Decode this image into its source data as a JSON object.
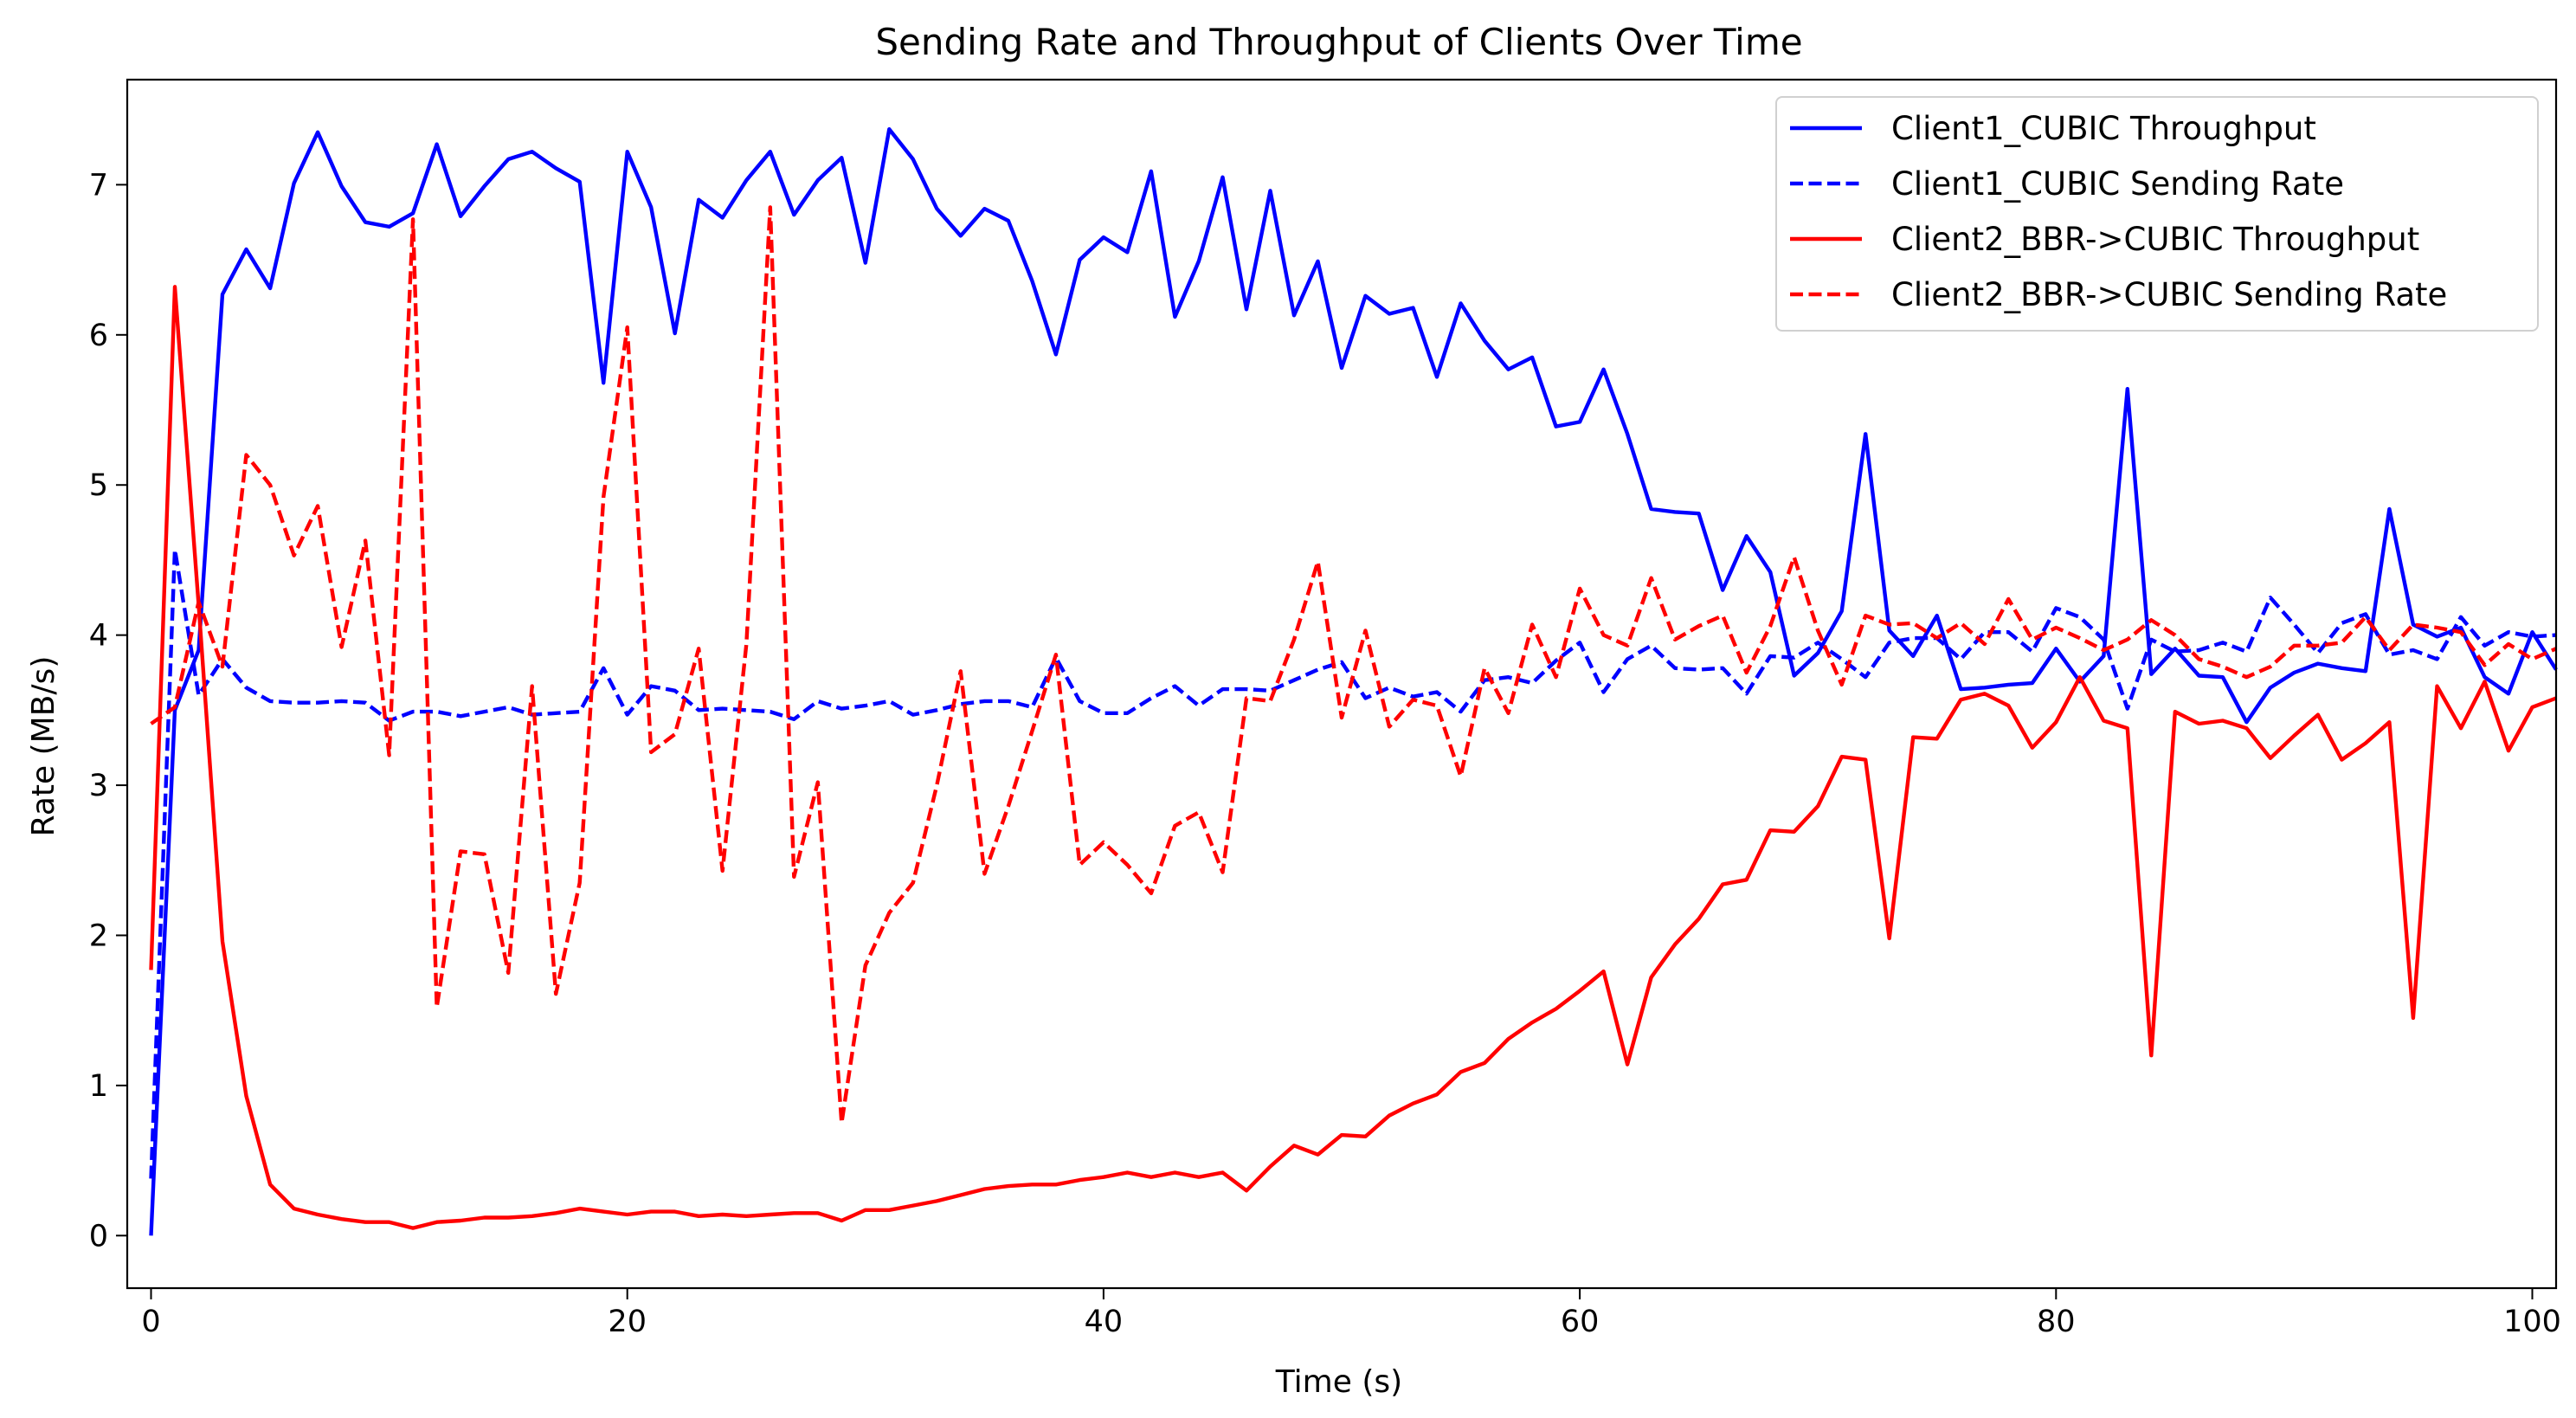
{
  "chart_data": {
    "type": "line",
    "title": "Sending Rate and Throughput of Clients Over Time",
    "xlabel": "Time (s)",
    "ylabel": "Rate (MB/s)",
    "xlim": [
      -1,
      101
    ],
    "ylim": [
      -0.35,
      7.7
    ],
    "xticks": [
      0,
      20,
      40,
      60,
      80,
      100
    ],
    "yticks": [
      0,
      1,
      2,
      3,
      4,
      5,
      6,
      7
    ],
    "xtick_labels": [
      "0",
      "20",
      "40",
      "60",
      "80",
      "100"
    ],
    "ytick_labels": [
      "0",
      "1",
      "2",
      "3",
      "4",
      "5",
      "6",
      "7"
    ],
    "grid": false,
    "legend_position": "top-right",
    "x": [
      0,
      1,
      2,
      3,
      4,
      5,
      6,
      7,
      8,
      9,
      10,
      11,
      12,
      13,
      14,
      15,
      16,
      17,
      18,
      19,
      20,
      21,
      22,
      23,
      24,
      25,
      26,
      27,
      28,
      29,
      30,
      31,
      32,
      33,
      34,
      35,
      36,
      37,
      38,
      39,
      40,
      41,
      42,
      43,
      44,
      45,
      46,
      47,
      48,
      49,
      50,
      51,
      52,
      53,
      54,
      55,
      56,
      57,
      58,
      59,
      60,
      61,
      62,
      63,
      64,
      65,
      66,
      67,
      68,
      69,
      70,
      71,
      72,
      73,
      74,
      75,
      76,
      77,
      78,
      79,
      80,
      81,
      82,
      83,
      84,
      85,
      86,
      87,
      88,
      89,
      90,
      91,
      92,
      93,
      94,
      95,
      96,
      97,
      98,
      99,
      100,
      101
    ],
    "series": [
      {
        "name": "Client1_CUBIC Throughput",
        "color": "#0000ff",
        "style": "solid",
        "values": [
          0.0,
          3.5,
          3.9,
          6.27,
          6.57,
          6.31,
          7.01,
          7.35,
          6.99,
          6.75,
          6.72,
          6.81,
          7.27,
          6.79,
          6.99,
          7.17,
          7.22,
          7.11,
          7.02,
          5.68,
          7.22,
          6.85,
          6.01,
          6.9,
          6.78,
          7.03,
          7.22,
          6.8,
          7.03,
          7.18,
          6.48,
          7.37,
          7.17,
          6.84,
          6.66,
          6.84,
          6.76,
          6.36,
          5.87,
          6.5,
          6.65,
          6.55,
          7.09,
          6.12,
          6.49,
          7.05,
          6.17,
          6.96,
          6.13,
          6.49,
          5.78,
          6.26,
          6.14,
          6.18,
          5.72,
          6.21,
          5.96,
          5.77,
          5.85,
          5.39,
          5.42,
          5.77,
          5.34,
          4.84,
          4.82,
          4.81,
          4.3,
          4.66,
          4.42,
          3.73,
          3.88,
          4.16,
          5.34,
          4.03,
          3.86,
          4.13,
          3.64,
          3.65,
          3.67,
          3.68,
          3.91,
          3.69,
          3.86,
          5.64,
          3.74,
          3.91,
          3.73,
          3.72,
          3.42,
          3.65,
          3.75,
          3.81,
          3.78,
          3.76,
          4.84,
          4.07,
          3.99,
          4.05,
          3.72,
          3.61,
          4.02,
          3.77
        ]
      },
      {
        "name": "Client1_CUBIC Sending Rate",
        "color": "#0000ff",
        "style": "dashed",
        "values": [
          0.38,
          4.57,
          3.6,
          3.84,
          3.65,
          3.56,
          3.55,
          3.55,
          3.56,
          3.55,
          3.43,
          3.49,
          3.49,
          3.46,
          3.49,
          3.52,
          3.47,
          3.48,
          3.49,
          3.78,
          3.47,
          3.66,
          3.63,
          3.5,
          3.51,
          3.5,
          3.49,
          3.44,
          3.56,
          3.51,
          3.53,
          3.56,
          3.47,
          3.5,
          3.54,
          3.56,
          3.56,
          3.52,
          3.85,
          3.56,
          3.48,
          3.48,
          3.58,
          3.66,
          3.53,
          3.64,
          3.64,
          3.63,
          3.7,
          3.77,
          3.82,
          3.58,
          3.65,
          3.59,
          3.62,
          3.49,
          3.7,
          3.72,
          3.68,
          3.83,
          3.95,
          3.62,
          3.84,
          3.93,
          3.78,
          3.77,
          3.78,
          3.61,
          3.86,
          3.85,
          3.95,
          3.84,
          3.72,
          3.95,
          3.98,
          3.98,
          3.84,
          4.02,
          4.02,
          3.89,
          4.18,
          4.12,
          3.97,
          3.51,
          3.97,
          3.89,
          3.9,
          3.95,
          3.89,
          4.25,
          4.07,
          3.88,
          4.08,
          4.14,
          3.87,
          3.9,
          3.84,
          4.12,
          3.93,
          4.02,
          3.99,
          4.0
        ]
      },
      {
        "name": "Client2_BBR->CUBIC Throughput",
        "color": "#ff0000",
        "style": "solid",
        "values": [
          1.77,
          6.32,
          4.2,
          1.96,
          0.93,
          0.34,
          0.18,
          0.14,
          0.11,
          0.09,
          0.09,
          0.05,
          0.09,
          0.1,
          0.12,
          0.12,
          0.13,
          0.15,
          0.18,
          0.16,
          0.14,
          0.16,
          0.16,
          0.13,
          0.14,
          0.13,
          0.14,
          0.15,
          0.15,
          0.1,
          0.17,
          0.17,
          0.2,
          0.23,
          0.27,
          0.31,
          0.33,
          0.34,
          0.34,
          0.37,
          0.39,
          0.42,
          0.39,
          0.42,
          0.39,
          0.42,
          0.3,
          0.46,
          0.6,
          0.54,
          0.67,
          0.66,
          0.8,
          0.88,
          0.94,
          1.09,
          1.15,
          1.31,
          1.42,
          1.51,
          1.63,
          1.76,
          1.14,
          1.72,
          1.94,
          2.11,
          2.34,
          2.37,
          2.7,
          2.69,
          2.86,
          3.19,
          3.17,
          1.98,
          3.32,
          3.31,
          3.57,
          3.61,
          3.53,
          3.25,
          3.42,
          3.72,
          3.43,
          3.38,
          1.2,
          3.49,
          3.41,
          3.43,
          3.38,
          3.18,
          3.33,
          3.47,
          3.17,
          3.28,
          3.42,
          1.45,
          3.66,
          3.38,
          3.69,
          3.23,
          3.52,
          3.58
        ]
      },
      {
        "name": "Client2_BBR->CUBIC Sending Rate",
        "color": "#ff0000",
        "style": "dashed",
        "values": [
          3.41,
          3.52,
          4.22,
          3.79,
          5.2,
          5.0,
          4.53,
          4.86,
          3.92,
          4.63,
          3.2,
          6.77,
          1.52,
          2.56,
          2.54,
          1.75,
          3.66,
          1.61,
          2.35,
          4.92,
          6.05,
          3.22,
          3.34,
          3.91,
          2.43,
          3.94,
          6.85,
          2.39,
          3.02,
          0.75,
          1.8,
          2.15,
          2.35,
          3.0,
          3.76,
          2.41,
          2.86,
          3.36,
          3.87,
          2.47,
          2.62,
          2.47,
          2.28,
          2.73,
          2.82,
          2.42,
          3.58,
          3.56,
          3.97,
          4.49,
          3.45,
          4.03,
          3.39,
          3.57,
          3.53,
          3.06,
          3.78,
          3.48,
          4.07,
          3.72,
          4.31,
          4.0,
          3.93,
          4.38,
          3.97,
          4.06,
          4.13,
          3.75,
          4.06,
          4.52,
          4.03,
          3.67,
          4.13,
          4.07,
          4.08,
          3.98,
          4.08,
          3.94,
          4.24,
          3.97,
          4.05,
          3.98,
          3.9,
          3.97,
          4.1,
          4.0,
          3.84,
          3.79,
          3.72,
          3.79,
          3.93,
          3.93,
          3.95,
          4.12,
          3.9,
          4.07,
          4.05,
          4.02,
          3.8,
          3.94,
          3.84,
          3.91
        ]
      }
    ]
  }
}
